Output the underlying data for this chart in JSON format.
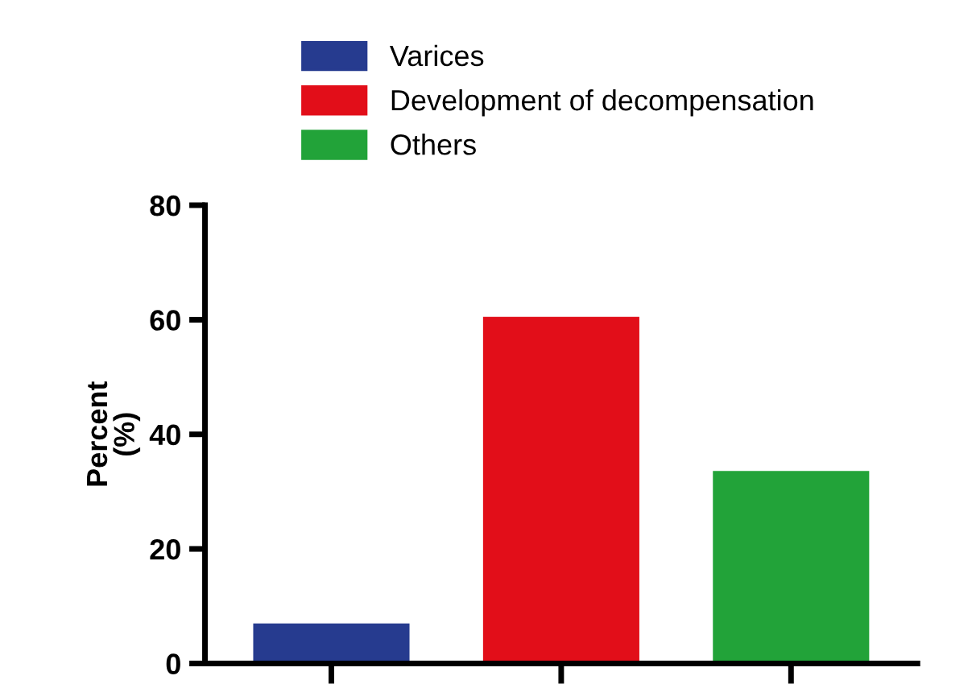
{
  "chart_data": {
    "type": "bar",
    "ylabel": "Percent\n(%)",
    "categories": [
      null,
      null,
      null
    ],
    "series": [
      {
        "name": "Varices",
        "color": "#263b8f",
        "values": [
          7.0,
          null,
          null
        ]
      },
      {
        "name": "Development of decompensation",
        "color": "#e20e19",
        "values": [
          null,
          60.5,
          null
        ]
      },
      {
        "name": "Others",
        "color": "#22a339",
        "values": [
          null,
          null,
          33.6
        ]
      }
    ],
    "ylim": [
      0,
      80
    ],
    "yticks": [
      0,
      20,
      40,
      60,
      80
    ],
    "grid": false,
    "legend": "top"
  }
}
